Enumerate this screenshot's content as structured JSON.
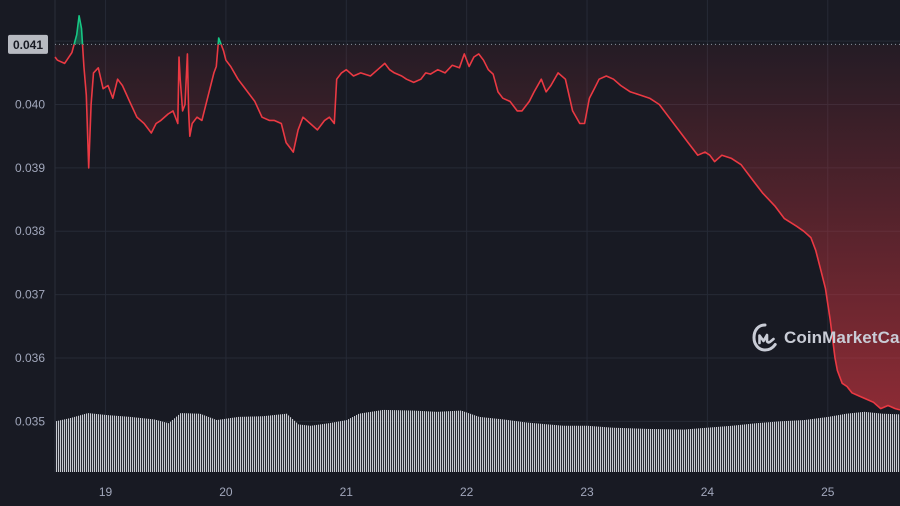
{
  "colors": {
    "background": "#181a23",
    "down": "#ea3943",
    "up": "#16c784",
    "volume": "#c8cbd2",
    "grid": "#262a36",
    "price_label_bg": "#b7bac1",
    "price_label_text": "#181a23",
    "tick_text": "#a1a7bb"
  },
  "logo": {
    "text": "CoinMarketCap",
    "icon": "coinmarketcap-logo-icon"
  },
  "current_price_label": "0.041",
  "chart_data": {
    "type": "line",
    "title": "",
    "xlabel": "",
    "ylabel": "",
    "baseline": 0.04095,
    "ylim": [
      0.0342,
      0.04165
    ],
    "y_ticks": [
      "0.035",
      "0.036",
      "0.037",
      "0.038",
      "0.039",
      "0.040",
      "0.041"
    ],
    "y_tick_values": [
      0.035,
      0.036,
      0.037,
      0.038,
      0.039,
      0.04,
      0.041
    ],
    "x_ticks": [
      "19",
      "20",
      "21",
      "22",
      "23",
      "24",
      "25"
    ],
    "x_tick_values": [
      19,
      20,
      21,
      22,
      23,
      24,
      25
    ],
    "xlim": [
      18.58,
      25.6
    ],
    "grid": true,
    "series": [
      {
        "type": "price",
        "x": [
          18.58,
          18.6,
          18.66,
          18.72,
          18.76,
          18.78,
          18.8,
          18.82,
          18.84,
          18.86,
          18.88,
          18.9,
          18.94,
          18.98,
          19.02,
          19.06,
          19.1,
          19.14,
          19.2,
          19.26,
          19.32,
          19.38,
          19.42,
          19.46,
          19.52,
          19.56,
          19.6,
          19.61,
          19.62,
          19.64,
          19.66,
          19.68,
          19.69,
          19.7,
          19.72,
          19.76,
          19.8,
          19.84,
          19.88,
          19.9,
          19.92,
          19.94,
          19.98,
          20.0,
          20.04,
          20.1,
          20.14,
          20.18,
          20.24,
          20.3,
          20.36,
          20.4,
          20.46,
          20.5,
          20.54,
          20.56,
          20.6,
          20.64,
          20.7,
          20.76,
          20.82,
          20.86,
          20.9,
          20.92,
          20.96,
          21.0,
          21.06,
          21.12,
          21.2,
          21.26,
          21.32,
          21.36,
          21.4,
          21.46,
          21.5,
          21.56,
          21.62,
          21.66,
          21.7,
          21.76,
          21.82,
          21.88,
          21.94,
          21.98,
          22.0,
          22.02,
          22.06,
          22.1,
          22.14,
          22.18,
          22.22,
          22.26,
          22.3,
          22.36,
          22.42,
          22.46,
          22.52,
          22.56,
          22.62,
          22.66,
          22.7,
          22.76,
          22.82,
          22.88,
          22.94,
          22.98,
          23.02,
          23.06,
          23.1,
          23.16,
          23.22,
          23.28,
          23.36,
          23.44,
          23.52,
          23.6,
          23.68,
          23.76,
          23.84,
          23.92,
          23.98,
          24.02,
          24.06,
          24.12,
          24.2,
          24.28,
          24.38,
          24.46,
          24.56,
          24.64,
          24.74,
          24.8,
          24.86,
          24.9,
          24.94,
          24.98,
          25.02,
          25.04,
          25.06,
          25.08,
          25.1,
          25.12,
          25.16,
          25.2,
          25.26,
          25.32,
          25.38,
          25.44,
          25.5,
          25.56,
          25.6
        ],
        "y": [
          0.04075,
          0.0407,
          0.04065,
          0.04082,
          0.0411,
          0.0414,
          0.0412,
          0.0406,
          0.04015,
          0.039,
          0.04,
          0.0405,
          0.04058,
          0.04025,
          0.0403,
          0.0401,
          0.0404,
          0.0403,
          0.04005,
          0.0398,
          0.0397,
          0.03955,
          0.0397,
          0.03975,
          0.03985,
          0.0399,
          0.0397,
          0.04075,
          0.0404,
          0.0399,
          0.04,
          0.0408,
          0.0399,
          0.0395,
          0.0397,
          0.0398,
          0.03975,
          0.04005,
          0.04035,
          0.0405,
          0.0406,
          0.04105,
          0.04085,
          0.0407,
          0.0406,
          0.0404,
          0.0403,
          0.0402,
          0.04005,
          0.0398,
          0.03975,
          0.03975,
          0.0397,
          0.0394,
          0.0393,
          0.03925,
          0.0396,
          0.0398,
          0.0397,
          0.0396,
          0.03975,
          0.0398,
          0.0397,
          0.0404,
          0.0405,
          0.04055,
          0.04045,
          0.0405,
          0.04045,
          0.04055,
          0.04065,
          0.04055,
          0.0405,
          0.04045,
          0.0404,
          0.04035,
          0.0404,
          0.0405,
          0.04048,
          0.04055,
          0.0405,
          0.04062,
          0.04058,
          0.0408,
          0.0407,
          0.0406,
          0.04075,
          0.0408,
          0.0407,
          0.04055,
          0.04048,
          0.0402,
          0.0401,
          0.04005,
          0.0399,
          0.0399,
          0.04005,
          0.0402,
          0.0404,
          0.0402,
          0.0403,
          0.0405,
          0.0404,
          0.0399,
          0.0397,
          0.0397,
          0.0401,
          0.04025,
          0.0404,
          0.04045,
          0.0404,
          0.0403,
          0.0402,
          0.04015,
          0.0401,
          0.04,
          0.0398,
          0.0396,
          0.0394,
          0.0392,
          0.03925,
          0.0392,
          0.0391,
          0.0392,
          0.03915,
          0.03905,
          0.0388,
          0.0386,
          0.0384,
          0.0382,
          0.03808,
          0.038,
          0.0379,
          0.0377,
          0.0374,
          0.0371,
          0.0366,
          0.0363,
          0.036,
          0.0358,
          0.0357,
          0.0356,
          0.03555,
          0.03545,
          0.0354,
          0.03535,
          0.0353,
          0.0352,
          0.03525,
          0.0352,
          0.03518
        ]
      },
      {
        "type": "volume",
        "x": [
          18.58,
          18.7,
          18.85,
          19.0,
          19.2,
          19.4,
          19.52,
          19.62,
          19.78,
          19.92,
          20.1,
          20.3,
          20.5,
          20.6,
          20.7,
          20.85,
          21.0,
          21.1,
          21.3,
          21.55,
          21.75,
          21.95,
          22.1,
          22.3,
          22.5,
          22.8,
          23.0,
          23.2,
          23.5,
          23.8,
          24.0,
          24.2,
          24.4,
          24.6,
          24.8,
          25.0,
          25.15,
          25.3,
          25.45,
          25.6
        ],
        "y": [
          0.035,
          0.03505,
          0.03513,
          0.0351,
          0.03507,
          0.03503,
          0.03497,
          0.03513,
          0.03512,
          0.03502,
          0.03507,
          0.03508,
          0.03512,
          0.03495,
          0.03493,
          0.03497,
          0.03502,
          0.03512,
          0.03518,
          0.03517,
          0.03515,
          0.03517,
          0.03507,
          0.03503,
          0.03498,
          0.03493,
          0.03493,
          0.0349,
          0.03488,
          0.03487,
          0.0349,
          0.03493,
          0.03497,
          0.035,
          0.03502,
          0.03507,
          0.03512,
          0.03515,
          0.03512,
          0.03511
        ]
      }
    ]
  }
}
